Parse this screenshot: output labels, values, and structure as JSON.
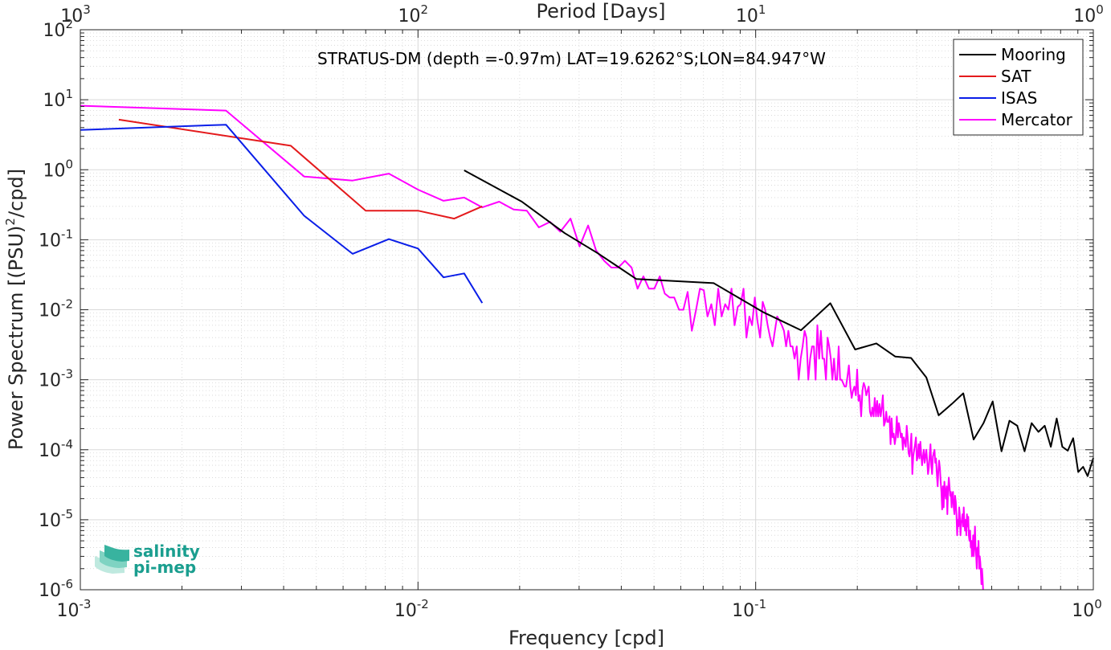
{
  "chart_data": {
    "type": "line",
    "title": "",
    "annotation": "STRATUS-DM (depth =-0.97m) LAT=19.6262°S;LON=84.947°W",
    "xlabel": "Frequency [cpd]",
    "ylabel": "Power Spectrum [(PSU)",
    "ylabel_sup": "2",
    "ylabel_suffix": "/cpd]",
    "top_xlabel": "Period [Days]",
    "xscale": "log",
    "yscale": "log",
    "xlim": [
      0.001,
      1
    ],
    "ylim": [
      1e-06,
      100
    ],
    "grid": true,
    "minor_grid": true,
    "legend_position": "top-right",
    "x_ticks": [
      {
        "base": "10",
        "exp": "-3",
        "v": 0.001
      },
      {
        "base": "10",
        "exp": "-2",
        "v": 0.01
      },
      {
        "base": "10",
        "exp": "-1",
        "v": 0.1
      },
      {
        "base": "10",
        "exp": "0",
        "v": 1
      }
    ],
    "y_ticks": [
      {
        "base": "10",
        "exp": "-6",
        "v": 1e-06
      },
      {
        "base": "10",
        "exp": "-5",
        "v": 1e-05
      },
      {
        "base": "10",
        "exp": "-4",
        "v": 0.0001
      },
      {
        "base": "10",
        "exp": "-3",
        "v": 0.001
      },
      {
        "base": "10",
        "exp": "-2",
        "v": 0.01
      },
      {
        "base": "10",
        "exp": "-1",
        "v": 0.1
      },
      {
        "base": "10",
        "exp": "0",
        "v": 1
      },
      {
        "base": "10",
        "exp": "1",
        "v": 10
      },
      {
        "base": "10",
        "exp": "2",
        "v": 100
      }
    ],
    "top_ticks": [
      {
        "base": "10",
        "exp": "3",
        "v": 0.001
      },
      {
        "base": "10",
        "exp": "2",
        "v": 0.01
      },
      {
        "base": "10",
        "exp": "1",
        "v": 0.1
      },
      {
        "base": "10",
        "exp": "0",
        "v": 1
      }
    ],
    "series": [
      {
        "name": "Mooring",
        "color": "#000000",
        "x": [
          0.0137,
          0.0203,
          0.0272,
          0.0341,
          0.0443,
          0.0751,
          0.1055,
          0.1362,
          0.1664,
          0.1971,
          0.2277,
          0.2589,
          0.2886,
          0.3202,
          0.3483,
          0.3809,
          0.412,
          0.4421,
          0.4728,
          0.5034,
          0.5346,
          0.5646,
          0.5953,
          0.6256,
          0.6565,
          0.6877,
          0.7181,
          0.7485,
          0.7788,
          0.8096,
          0.84,
          0.8715,
          0.9022,
          0.933,
          0.9619,
          1.0
        ],
        "y": [
          0.98,
          0.35,
          0.124,
          0.064,
          0.0275,
          0.024,
          0.0092,
          0.0051,
          0.0124,
          0.0027,
          0.0033,
          0.00215,
          0.00205,
          0.00108,
          0.00031,
          0.00045,
          0.00064,
          0.00014,
          0.00024,
          0.00049,
          9.5e-05,
          0.00026,
          0.00022,
          9.5e-05,
          0.00024,
          0.00018,
          0.00022,
          0.00011,
          0.00028,
          0.00011,
          9.7e-05,
          0.000146,
          4.8e-05,
          5.7e-05,
          4.2e-05,
          7.6e-05
        ]
      },
      {
        "name": "SAT",
        "color": "#e41a1c",
        "x": [
          0.0013,
          0.0042,
          0.007,
          0.01,
          0.0128,
          0.0155
        ],
        "y": [
          5.2,
          2.2,
          0.26,
          0.26,
          0.2,
          0.3
        ]
      },
      {
        "name": "ISAS",
        "color": "#0a1ee8",
        "x": [
          0.001,
          0.0027,
          0.0046,
          0.0064,
          0.0082,
          0.01,
          0.0119,
          0.0137,
          0.0155
        ],
        "y": [
          3.7,
          4.4,
          0.22,
          0.063,
          0.102,
          0.075,
          0.029,
          0.033,
          0.0125
        ]
      },
      {
        "name": "Mercator",
        "color": "#ff00ff",
        "x": [
          0.001,
          0.0027,
          0.0046,
          0.0064,
          0.0082,
          0.01,
          0.0119,
          0.0137,
          0.0155,
          0.0174,
          0.0192,
          0.021,
          0.0228,
          0.0246,
          0.0264,
          0.0283,
          0.0301,
          0.0319,
          0.0337,
          0.0356,
          0.0374,
          0.0392,
          0.041,
          0.0429,
          0.0447,
          0.0465,
          0.0483,
          0.0501,
          0.052,
          0.0538,
          0.0556,
          0.0574,
          0.0593,
          0.0611,
          0.0629,
          0.0647,
          0.0666,
          0.0684,
          0.0702,
          0.072,
          0.0739,
          0.0757,
          0.0775,
          0.0793,
          0.0812,
          0.083,
          0.0848,
          0.0866,
          0.0885,
          0.0903,
          0.0921,
          0.0939,
          0.0958,
          0.0976,
          0.0994,
          0.1012,
          0.1031,
          0.1049,
          0.1067,
          0.1085,
          0.1104,
          0.1122,
          0.114,
          0.1158,
          0.1177,
          0.1195,
          0.1213,
          0.1231,
          0.125,
          0.1268,
          0.1286,
          0.1304,
          0.1323,
          0.1341,
          0.1359,
          0.1377,
          0.1396,
          0.1414,
          0.1432,
          0.145,
          0.1469,
          0.1487,
          0.1505,
          0.1523,
          0.1542,
          0.156,
          0.1578,
          0.1596,
          0.1615,
          0.1633,
          0.1651,
          0.1669,
          0.1688,
          0.1706,
          0.1724,
          0.1742,
          0.1761,
          0.1779,
          0.1797,
          0.1815,
          0.1834,
          0.1852,
          0.187,
          0.1888,
          0.1907,
          0.1925,
          0.1943,
          0.1961,
          0.198,
          0.1998,
          0.2016,
          0.2034,
          0.2053,
          0.2071,
          0.2089,
          0.2107,
          0.2126,
          0.2144,
          0.2162,
          0.218,
          0.2199,
          0.2217,
          0.2235,
          0.2253,
          0.2272,
          0.229,
          0.2308,
          0.2326,
          0.2345,
          0.2363,
          0.2381,
          0.2399,
          0.2418,
          0.2436,
          0.2454,
          0.2472,
          0.2491,
          0.2509,
          0.2527,
          0.2545,
          0.2564,
          0.2582,
          0.26,
          0.2618,
          0.2637,
          0.2655,
          0.2673,
          0.2691,
          0.271,
          0.2728,
          0.2746,
          0.2764,
          0.2783,
          0.2801,
          0.2819,
          0.2837,
          0.2856,
          0.2874,
          0.2892,
          0.291,
          0.2929,
          0.2947,
          0.2965,
          0.2983,
          0.3002,
          0.302,
          0.3038,
          0.3056,
          0.3075,
          0.3093,
          0.3111,
          0.3129,
          0.3148,
          0.3166,
          0.3184,
          0.3202,
          0.3221,
          0.3239,
          0.3257,
          0.3275,
          0.3294,
          0.3312,
          0.333,
          0.3348,
          0.3367,
          0.3385,
          0.3403,
          0.3421,
          0.344,
          0.3458,
          0.3476,
          0.3494,
          0.3513,
          0.3531,
          0.3549,
          0.3567,
          0.3586,
          0.3604,
          0.3622,
          0.364,
          0.3659,
          0.3677,
          0.3695,
          0.3713,
          0.3732,
          0.375,
          0.3768,
          0.3786,
          0.3805,
          0.3823,
          0.3841,
          0.3859,
          0.3878,
          0.3896,
          0.3914,
          0.3932,
          0.3951,
          0.3969,
          0.3987,
          0.4005,
          0.4024,
          0.4042,
          0.406,
          0.4078,
          0.4097,
          0.4115,
          0.4133,
          0.4151,
          0.417,
          0.4188,
          0.4206,
          0.4224,
          0.4243,
          0.4261,
          0.4279,
          0.4297,
          0.4316,
          0.4334,
          0.4352,
          0.437,
          0.4389,
          0.4407,
          0.4425,
          0.4443,
          0.4462,
          0.448,
          0.4498,
          0.4516,
          0.4535,
          0.4553,
          0.4571,
          0.4589,
          0.4608,
          0.4626,
          0.4644,
          0.4662,
          0.4681,
          0.4699,
          0.4717
        ],
        "y": [
          8.2,
          7.0,
          0.8,
          0.7,
          0.88,
          0.52,
          0.36,
          0.4,
          0.29,
          0.35,
          0.27,
          0.26,
          0.15,
          0.18,
          0.13,
          0.2,
          0.08,
          0.16,
          0.07,
          0.05,
          0.04,
          0.04,
          0.05,
          0.04,
          0.02,
          0.03,
          0.02,
          0.02,
          0.03,
          0.017,
          0.015,
          0.015,
          0.01,
          0.01,
          0.018,
          0.005,
          0.01,
          0.02,
          0.019,
          0.008,
          0.012,
          0.006,
          0.02,
          0.008,
          0.012,
          0.01,
          0.02,
          0.006,
          0.011,
          0.012,
          0.02,
          0.004,
          0.008,
          0.006,
          0.015,
          0.007,
          0.004,
          0.013,
          0.01,
          0.006,
          0.004,
          0.003,
          0.005,
          0.008,
          0.007,
          0.006,
          0.005,
          0.003,
          0.005,
          0.003,
          0.003,
          0.002,
          0.003,
          0.001,
          0.002,
          0.003,
          0.005,
          0.004,
          0.001,
          0.002,
          0.003,
          0.003,
          0.001,
          0.006,
          0.002,
          0.005,
          0.002,
          0.002,
          0.001,
          0.004,
          0.003,
          0.002,
          0.001,
          0.002,
          0.001,
          0.001,
          0.003,
          0.001,
          0.001,
          0.0009,
          0.0008,
          0.0008,
          0.0011,
          0.0016,
          0.0008,
          0.00055,
          0.0007,
          0.0008,
          0.0006,
          0.0014,
          0.0005,
          0.0006,
          0.0003,
          0.0007,
          0.0009,
          0.0008,
          0.0006,
          0.0007,
          0.0008,
          0.00035,
          0.0003,
          0.0004,
          0.0003,
          0.00055,
          0.0003,
          0.0005,
          0.0003,
          0.00045,
          0.0003,
          0.0004,
          0.0006,
          0.00022,
          0.00025,
          0.00035,
          0.00025,
          0.00025,
          0.0003,
          0.00012,
          0.00028,
          0.00015,
          0.00017,
          0.00012,
          0.00015,
          0.0003,
          0.00015,
          0.00024,
          0.0002,
          0.00015,
          0.00017,
          0.0001,
          0.00015,
          0.00013,
          0.00011,
          0.00022,
          0.00015,
          9e-05,
          8e-05,
          0.00011,
          0.00017,
          4.5e-05,
          8e-05,
          0.0001,
          0.00012,
          0.00015,
          7e-05,
          8e-05,
          0.00012,
          7.5e-05,
          0.00013,
          8.5e-05,
          6e-05,
          8e-05,
          0.0001,
          6.5e-05,
          8e-05,
          0.0001,
          7e-05,
          4.5e-05,
          5.5e-05,
          8e-05,
          0.00012,
          6e-05,
          4.5e-05,
          8e-05,
          9e-05,
          0.0001,
          6.5e-05,
          7.5e-05,
          4.5e-05,
          3e-05,
          5e-05,
          7e-05,
          5.5e-05,
          3.5e-05,
          2.5e-05,
          1.4e-05,
          3e-05,
          1.5e-05,
          3.5e-05,
          2.5e-05,
          2e-05,
          3e-05,
          1.2e-05,
          2.5e-05,
          4e-05,
          3e-05,
          2.2e-05,
          2.5e-05,
          1.5e-05,
          2.2e-05,
          2.5e-05,
          1.5e-05,
          1.2e-05,
          2.2e-05,
          1.8e-05,
          1.2e-05,
          6e-06,
          1e-05,
          8e-06,
          1.5e-05,
          1.2e-05,
          6e-06,
          9e-06,
          1e-05,
          1.2e-05,
          8e-06,
          1.5e-05,
          9e-06,
          7e-06,
          1e-05,
          6e-06,
          1.2e-05,
          8e-06,
          1.1e-05,
          6e-06,
          5e-06,
          7e-06,
          4e-06,
          5e-06,
          3e-06,
          4e-06,
          6e-06,
          3e-06,
          5e-06,
          8e-06,
          4e-06,
          3e-06,
          2e-06,
          4e-06,
          3e-06,
          5e-06,
          2e-06,
          3e-06,
          2.5e-06,
          1.8e-06,
          1.2e-06,
          2e-06,
          1.5e-06,
          1e-06
        ]
      }
    ]
  },
  "logo": {
    "line1": "salinity",
    "line2": "pi-mep"
  }
}
